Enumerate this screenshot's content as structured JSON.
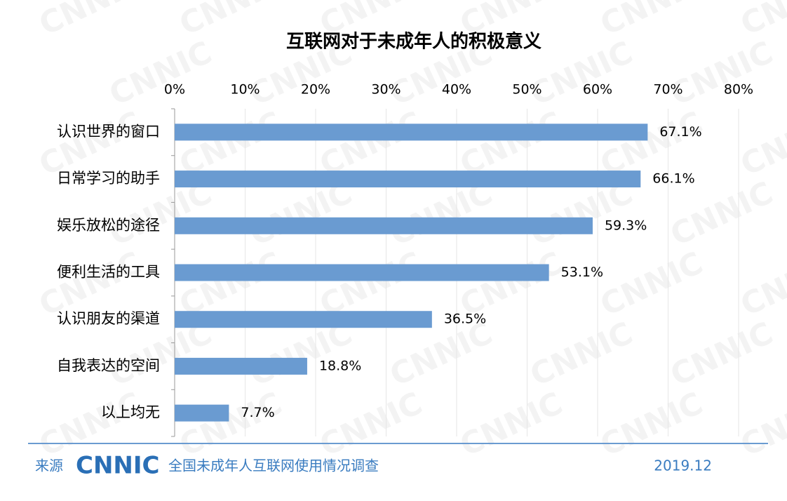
{
  "chart_data": {
    "type": "hbar",
    "title": "互联网对于未成年人的积极意义",
    "categories": [
      "认识世界的窗口",
      "日常学习的助手",
      "娱乐放松的途径",
      "便利生活的工具",
      "认识朋友的渠道",
      "自我表达的空间",
      "以上均无"
    ],
    "values": [
      67.1,
      66.1,
      59.3,
      53.1,
      36.5,
      18.8,
      7.7
    ],
    "value_labels": [
      "67.1%",
      "66.1%",
      "59.3%",
      "53.1%",
      "36.5%",
      "18.8%",
      "7.7%"
    ],
    "color": "#6a9bd1",
    "xlim": [
      0,
      80
    ],
    "xticks": [
      {
        "value": 0,
        "label": "0%"
      },
      {
        "value": 10,
        "label": "10%"
      },
      {
        "value": 20,
        "label": "20%"
      },
      {
        "value": 30,
        "label": "30%"
      },
      {
        "value": 40,
        "label": "40%"
      },
      {
        "value": 50,
        "label": "50%"
      },
      {
        "value": 60,
        "label": "60%"
      },
      {
        "value": 70,
        "label": "70%"
      },
      {
        "value": 80,
        "label": "80%"
      }
    ],
    "grid": true
  },
  "footer": {
    "source_label": "来源",
    "logo": "CNNIC",
    "survey": "全国未成年人互联网使用情况调查",
    "date": "2019.12"
  },
  "watermark": "CNNIC"
}
